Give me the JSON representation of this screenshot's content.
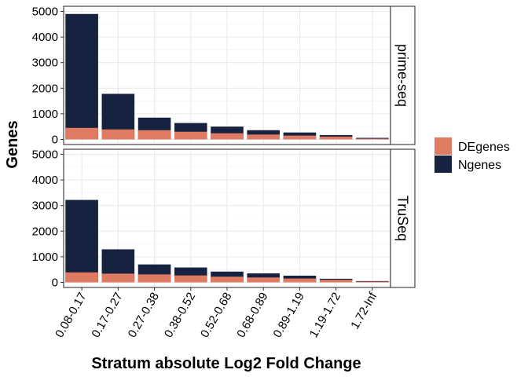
{
  "chart_data": {
    "type": "bar",
    "stacked": "overlaid",
    "xlabel": "Stratum absolute Log2 Fold Change",
    "ylabel": "Genes",
    "categories": [
      "0.08-0.17",
      "0.17-0.27",
      "0.27-0.38",
      "0.38-0.52",
      "0.52-0.68",
      "0.68-0.89",
      "0.89-1.19",
      "1.19-1.72",
      "1.72-Inf"
    ],
    "yticks": [
      0,
      1000,
      2000,
      3000,
      4000,
      5000
    ],
    "ylim": [
      -200,
      5200
    ],
    "grid": true,
    "legend_position": "right",
    "legend": [
      {
        "key": "DEgenes",
        "label": "DEgenes",
        "color": "#E07B63"
      },
      {
        "key": "Ngenes",
        "label": "Ngenes",
        "color": "#16223F"
      }
    ],
    "facets": [
      {
        "label": "prime-seq",
        "series": [
          {
            "name": "Ngenes",
            "color": "#16223F",
            "values": [
              4900,
              1780,
              850,
              640,
              500,
              360,
              270,
              170,
              60
            ]
          },
          {
            "name": "DEgenes",
            "color": "#E07B63",
            "values": [
              450,
              390,
              360,
              300,
              240,
              190,
              150,
              110,
              30
            ]
          }
        ]
      },
      {
        "label": "TruSeq",
        "series": [
          {
            "name": "Ngenes",
            "color": "#16223F",
            "values": [
              3220,
              1290,
              700,
              580,
              420,
              350,
              260,
              140,
              50
            ]
          },
          {
            "name": "DEgenes",
            "color": "#E07B63",
            "values": [
              390,
              340,
              310,
              270,
              220,
              190,
              150,
              100,
              30
            ]
          }
        ]
      }
    ]
  }
}
